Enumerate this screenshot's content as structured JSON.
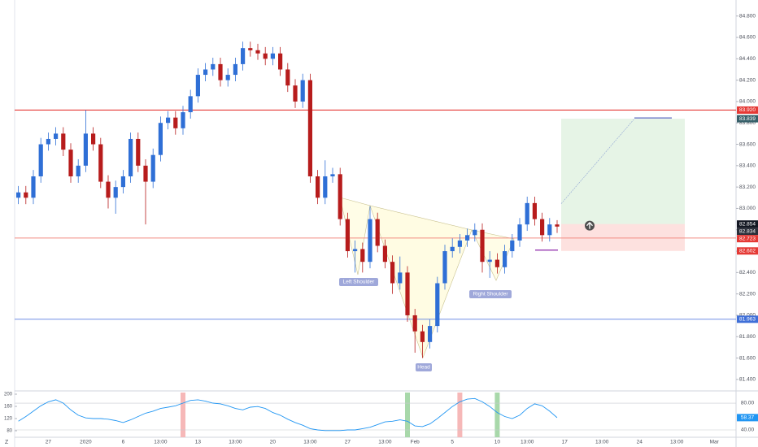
{
  "chart_data": [
    {
      "type": "candlestick",
      "categories": [
        null,
        null,
        null,
        null,
        "27",
        null,
        null,
        null,
        null,
        "2020",
        null,
        null,
        null,
        null,
        "6",
        null,
        null,
        null,
        null,
        "13:00",
        null,
        null,
        null,
        null,
        "13",
        null,
        null,
        null,
        null,
        "13:00",
        null,
        null,
        null,
        null,
        "20",
        null,
        null,
        null,
        null,
        "13:00",
        null,
        null,
        null,
        null,
        "27",
        null,
        null,
        null,
        null,
        "13:00",
        null,
        null,
        null,
        "Feb",
        null,
        null,
        null,
        null,
        "5",
        null,
        null,
        null,
        null,
        null,
        "10",
        null,
        null,
        null,
        "13:00",
        null,
        null,
        null,
        null,
        "17",
        null,
        null,
        null,
        null,
        "13:00",
        null,
        null,
        null,
        null,
        "24",
        null,
        null,
        null,
        null,
        "13:00",
        null,
        null,
        null,
        null,
        "Mar",
        null,
        null
      ],
      "open": [
        83.1,
        83.15,
        83.1,
        83.3,
        83.6,
        83.65,
        83.7,
        83.55,
        83.3,
        83.4,
        83.7,
        83.6,
        83.25,
        83.1,
        83.2,
        83.3,
        83.65,
        83.4,
        83.25,
        83.5,
        83.8,
        83.85,
        83.75,
        83.9,
        84.05,
        84.25,
        84.3,
        84.35,
        84.2,
        84.25,
        84.35,
        84.5,
        84.48,
        84.45,
        84.4,
        84.45,
        84.3,
        84.15,
        84.0,
        84.2,
        83.3,
        83.1,
        83.3,
        83.32,
        82.9,
        82.6,
        82.62,
        82.5,
        82.9,
        82.65,
        82.5,
        82.3,
        82.4,
        82.0,
        81.85,
        81.75,
        81.9,
        82.3,
        82.6,
        82.64,
        82.7,
        82.75,
        82.8,
        82.5,
        82.52,
        82.45,
        82.6,
        82.7,
        82.85,
        83.05,
        82.9,
        82.75,
        82.85,
        null,
        null,
        null,
        null,
        null,
        null,
        null,
        null,
        null,
        null,
        null,
        null,
        null,
        null,
        null,
        null,
        null,
        null,
        null,
        null,
        null,
        null,
        null
      ],
      "high": [
        83.21,
        83.21,
        83.36,
        83.66,
        83.71,
        83.76,
        83.76,
        83.61,
        83.46,
        83.92,
        83.76,
        83.66,
        83.31,
        83.26,
        83.36,
        83.71,
        83.71,
        83.46,
        83.56,
        83.86,
        83.91,
        83.91,
        83.96,
        84.11,
        84.31,
        84.36,
        84.41,
        84.41,
        84.31,
        84.41,
        84.56,
        84.56,
        84.54,
        84.51,
        84.51,
        84.51,
        84.36,
        84.21,
        84.26,
        84.26,
        83.36,
        83.45,
        83.38,
        83.38,
        82.96,
        82.7,
        82.68,
        83.02,
        82.96,
        82.71,
        82.56,
        82.55,
        82.46,
        82.06,
        81.91,
        81.96,
        82.36,
        82.66,
        82.72,
        82.76,
        82.81,
        82.86,
        82.86,
        82.6,
        82.58,
        82.66,
        82.76,
        82.91,
        83.11,
        83.11,
        82.96,
        82.91,
        82.89,
        null,
        null,
        null,
        null,
        null,
        null,
        null,
        null,
        null,
        null,
        null,
        null,
        null,
        null,
        null,
        null,
        null,
        null,
        null,
        null,
        null,
        null,
        null
      ],
      "low": [
        83.04,
        83.04,
        83.04,
        83.24,
        83.54,
        83.59,
        83.49,
        83.24,
        83.24,
        83.34,
        83.54,
        83.19,
        83.0,
        82.95,
        83.14,
        83.24,
        83.34,
        82.85,
        83.19,
        83.44,
        83.74,
        83.69,
        83.69,
        83.84,
        83.99,
        84.19,
        84.24,
        84.14,
        84.14,
        84.19,
        84.29,
        84.42,
        84.39,
        84.34,
        84.34,
        84.24,
        84.09,
        83.94,
        83.94,
        83.24,
        83.04,
        83.04,
        83.24,
        82.84,
        82.54,
        82.4,
        82.4,
        82.44,
        82.59,
        82.44,
        82.2,
        82.24,
        81.94,
        81.65,
        81.6,
        81.69,
        81.84,
        82.24,
        82.54,
        82.58,
        82.64,
        82.69,
        82.4,
        82.35,
        82.39,
        82.39,
        82.54,
        82.64,
        82.79,
        82.84,
        82.69,
        82.69,
        82.77,
        null,
        null,
        null,
        null,
        null,
        null,
        null,
        null,
        null,
        null,
        null,
        null,
        null,
        null,
        null,
        null,
        null,
        null,
        null,
        null,
        null,
        null,
        null
      ],
      "close": [
        83.15,
        83.1,
        83.3,
        83.6,
        83.65,
        83.7,
        83.55,
        83.3,
        83.4,
        83.7,
        83.6,
        83.25,
        83.1,
        83.2,
        83.3,
        83.65,
        83.4,
        83.25,
        83.5,
        83.8,
        83.85,
        83.75,
        83.9,
        84.05,
        84.25,
        84.3,
        84.35,
        84.2,
        84.25,
        84.35,
        84.5,
        84.48,
        84.45,
        84.4,
        84.45,
        84.3,
        84.15,
        84.0,
        84.2,
        83.3,
        83.1,
        83.3,
        83.32,
        82.9,
        82.6,
        82.62,
        82.5,
        82.9,
        82.65,
        82.5,
        82.3,
        82.4,
        82.0,
        81.85,
        81.75,
        81.9,
        82.3,
        82.6,
        82.64,
        82.7,
        82.75,
        82.8,
        82.5,
        82.52,
        82.45,
        82.6,
        82.7,
        82.85,
        83.05,
        82.9,
        82.75,
        82.85,
        82.83,
        null,
        null,
        null,
        null,
        null,
        null,
        null,
        null,
        null,
        null,
        null,
        null,
        null,
        null,
        null,
        null,
        null,
        null,
        null,
        null,
        null,
        null,
        null
      ],
      "up_color": "#2f6fd6",
      "down_color": "#b71c1c",
      "ylim": [
        81.3,
        84.95
      ],
      "yticks": [
        {
          "value": 81.4,
          "label": "81.400"
        },
        {
          "value": 81.6,
          "label": "81.600"
        },
        {
          "value": 81.8,
          "label": "81.800"
        },
        {
          "value": 82.0,
          "label": "82.000"
        },
        {
          "value": 82.2,
          "label": "82.200"
        },
        {
          "value": 82.4,
          "label": "82.400"
        },
        {
          "value": 82.6,
          "label": "82.600"
        },
        {
          "value": 82.8,
          "label": "82.800"
        },
        {
          "value": 83.0,
          "label": "83.000"
        },
        {
          "value": 83.2,
          "label": "83.200"
        },
        {
          "value": 83.4,
          "label": "83.400"
        },
        {
          "value": 83.6,
          "label": "83.600"
        },
        {
          "value": 83.8,
          "label": "83.800"
        },
        {
          "value": 84.0,
          "label": "84.000"
        },
        {
          "value": 84.2,
          "label": "84.200"
        },
        {
          "value": 84.4,
          "label": "84.400"
        },
        {
          "value": 84.6,
          "label": "84.600"
        },
        {
          "value": 84.8,
          "label": "84.800"
        }
      ],
      "price_labels": [
        {
          "value": 83.92,
          "label": "83.920",
          "color": "#e53935",
          "line": "#e53935"
        },
        {
          "value": 83.839,
          "label": "83.839",
          "color": "#37606a",
          "role": "target"
        },
        {
          "value": 82.854,
          "label": "82.854",
          "color": "#131722",
          "role": "entry"
        },
        {
          "value": 82.834,
          "label": "82.834",
          "color": "#2a2e39"
        },
        {
          "value": 82.723,
          "label": "82.723",
          "color": "#e53935",
          "line": "#f28b82"
        },
        {
          "value": 82.602,
          "label": "82.602",
          "color": "#e53935",
          "role": "stop"
        },
        {
          "value": 81.963,
          "label": "81.963",
          "color": "#3f6fd8",
          "line": "#5b7de0"
        }
      ],
      "pattern_labels": [
        "Left Shoulder",
        "Head",
        "Right Shoulder"
      ]
    },
    {
      "type": "line",
      "color": "#2196f3",
      "values": [
        53,
        60,
        68,
        76,
        82,
        85,
        80,
        70,
        62,
        58,
        57,
        57,
        56,
        54,
        51,
        55,
        60,
        65,
        68,
        72,
        74,
        76,
        80,
        84,
        85,
        83,
        80,
        79,
        76,
        72,
        70,
        74,
        75,
        72,
        66,
        62,
        56,
        51,
        47,
        42,
        40,
        39,
        39,
        39,
        40,
        40,
        42,
        44,
        48,
        52,
        53,
        55,
        53,
        46,
        45,
        49,
        57,
        66,
        75,
        82,
        86,
        87,
        82,
        75,
        66,
        60,
        57,
        62,
        72,
        79,
        76,
        68,
        58.37,
        null,
        null,
        null,
        null,
        null,
        null,
        null,
        null,
        null,
        null,
        null,
        null,
        null,
        null,
        null,
        null,
        null,
        null,
        null,
        null,
        null,
        null,
        null
      ],
      "ylim": [
        29.1,
        95.8
      ],
      "yticks": [
        {
          "value": 80,
          "label": "80.00"
        },
        {
          "value": 40,
          "label": "40.00"
        }
      ],
      "left_ylim": [
        58.7,
        205.3
      ],
      "left_yticks": [
        80,
        120,
        160,
        200
      ],
      "signals": [
        {
          "index": 22,
          "color": "#f6b8b8"
        },
        {
          "index": 52,
          "color": "#a8d8aa"
        },
        {
          "index": 59,
          "color": "#f6b8b8"
        },
        {
          "index": 64,
          "color": "#a8d8aa"
        }
      ]
    }
  ]
}
